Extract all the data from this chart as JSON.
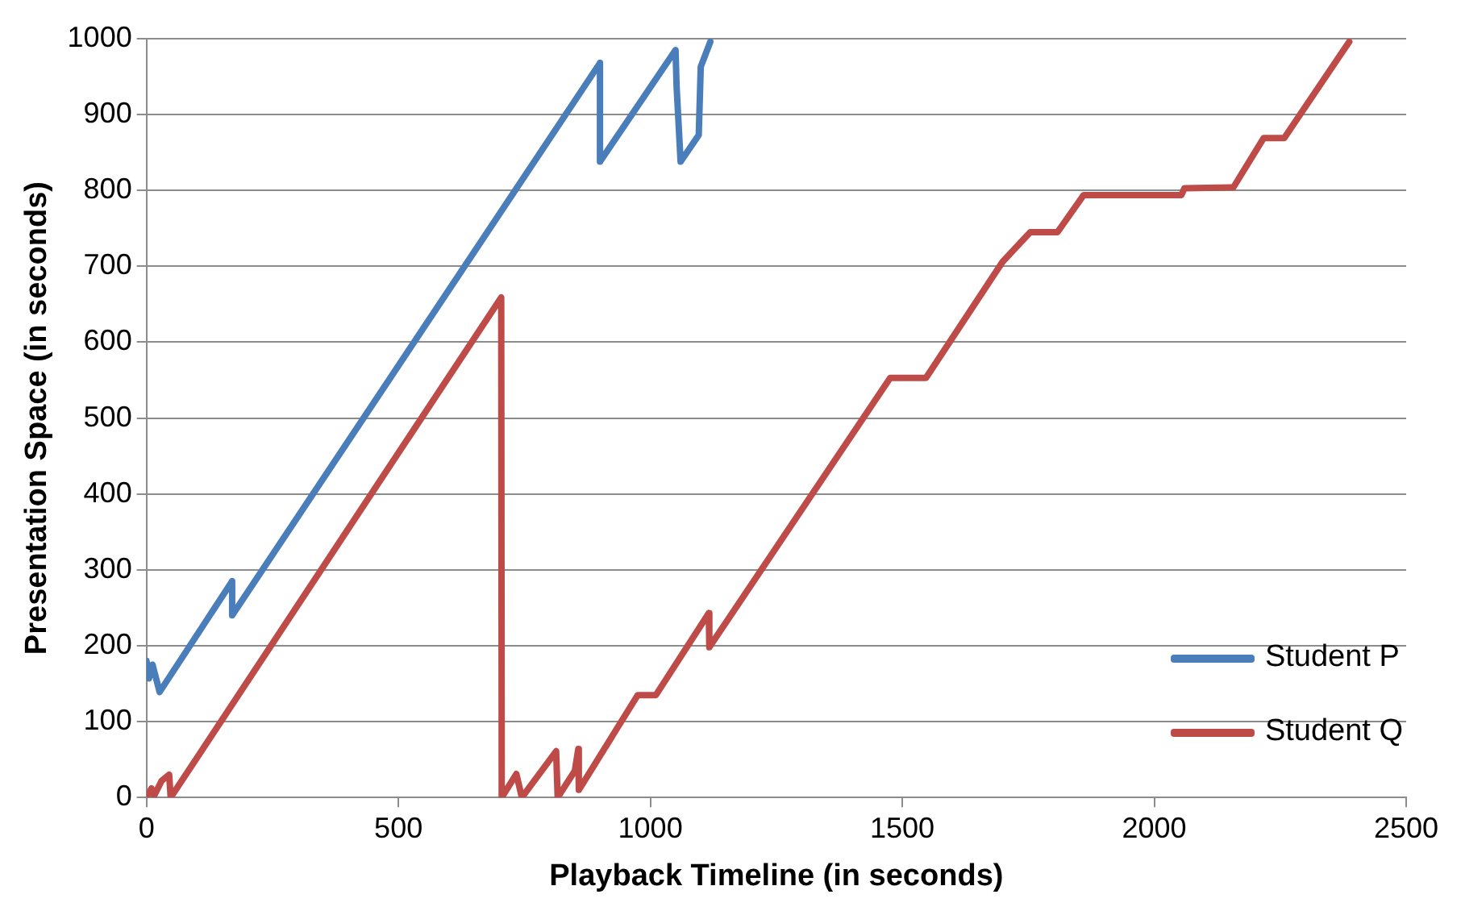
{
  "chart_data": {
    "type": "line",
    "xlabel": "Playback Timeline (in seconds)",
    "ylabel": "Presentation Space (in seconds)",
    "xlim": [
      0,
      2500
    ],
    "xticks": [
      0,
      500,
      1000,
      1500,
      2000,
      2500
    ],
    "ylim": [
      0,
      1000
    ],
    "yticks": [
      0,
      100,
      200,
      300,
      400,
      500,
      600,
      700,
      800,
      900,
      1000
    ],
    "grid": "y",
    "legend": "bottom right",
    "marker": "none",
    "line_style": "solid",
    "series": [
      {
        "name": "Student P",
        "color": "#4a7ebb",
        "x": [
          0,
          5,
          12,
          26,
          170,
          170,
          900,
          900,
          1050,
          1052,
          1060,
          1096,
          1100,
          1119
        ],
        "values": [
          180,
          157,
          175,
          139,
          285,
          240,
          968,
          838,
          985,
          938,
          838,
          873,
          963,
          996
        ]
      },
      {
        "name": "Student Q",
        "color": "#be4b48",
        "x": [
          0,
          10,
          15,
          30,
          45,
          48,
          704,
          705,
          734,
          745,
          813,
          816,
          850,
          857,
          858,
          975,
          1011,
          1116,
          1117,
          1476,
          1547,
          1699,
          1754,
          1808,
          1860,
          2054,
          2060,
          2157,
          2217,
          2258,
          2387
        ],
        "values": [
          0,
          12,
          2,
          22,
          30,
          0,
          659,
          0,
          31,
          0,
          61,
          0,
          35,
          64,
          10,
          135,
          135,
          243,
          198,
          553,
          553,
          706,
          745,
          745,
          794,
          794,
          803,
          804,
          869,
          869,
          996
        ]
      }
    ]
  }
}
